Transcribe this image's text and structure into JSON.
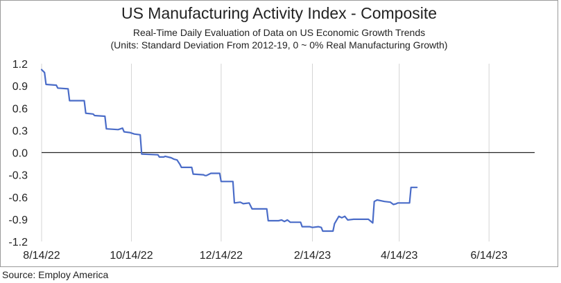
{
  "chart_data": {
    "type": "line",
    "title": "US Manufacturing Activity Index - Composite",
    "subtitle": "Real-Time Daily Evaluation of Data on US Economic Growth Trends",
    "subtitle2": "(Units: Standard Deviation From 2012-19, 0 ~ 0% Real Manufacturing Growth)",
    "xlabel": "",
    "ylabel": "",
    "ylim": [
      -1.2,
      1.2
    ],
    "yticks": [
      1.2,
      0.9,
      0.6,
      0.3,
      0.0,
      -0.3,
      -0.6,
      -0.9,
      -1.2
    ],
    "ytick_labels": [
      "1.2",
      "0.9",
      "0.6",
      "0.3",
      "0.0",
      "-0.3",
      "-0.6",
      "-0.9",
      "-1.2"
    ],
    "xlim": [
      "2022-08-14",
      "2023-07-15"
    ],
    "xticks": [
      "2022-08-14",
      "2022-10-14",
      "2022-12-14",
      "2023-02-14",
      "2023-04-14",
      "2023-06-14"
    ],
    "xtick_labels": [
      "8/14/22",
      "10/14/22",
      "12/14/22",
      "2/14/23",
      "4/14/23",
      "6/14/23"
    ],
    "grid": "vertical",
    "line_color": "#4a6cc8",
    "series": [
      {
        "points": [
          [
            "2022-08-14",
            1.12
          ],
          [
            "2022-08-16",
            1.08
          ],
          [
            "2022-08-17",
            0.92
          ],
          [
            "2022-08-24",
            0.91
          ],
          [
            "2022-08-25",
            0.87
          ],
          [
            "2022-09-01",
            0.86
          ],
          [
            "2022-09-02",
            0.7
          ],
          [
            "2022-09-12",
            0.7
          ],
          [
            "2022-09-13",
            0.53
          ],
          [
            "2022-09-18",
            0.52
          ],
          [
            "2022-09-19",
            0.5
          ],
          [
            "2022-09-26",
            0.49
          ],
          [
            "2022-09-27",
            0.32
          ],
          [
            "2022-10-05",
            0.31
          ],
          [
            "2022-10-08",
            0.33
          ],
          [
            "2022-10-09",
            0.28
          ],
          [
            "2022-10-13",
            0.27
          ],
          [
            "2022-10-16",
            0.25
          ],
          [
            "2022-10-20",
            0.24
          ],
          [
            "2022-10-21",
            -0.02
          ],
          [
            "2022-11-01",
            -0.03
          ],
          [
            "2022-11-02",
            -0.06
          ],
          [
            "2022-11-05",
            -0.06
          ],
          [
            "2022-11-06",
            -0.05
          ],
          [
            "2022-11-10",
            -0.07
          ],
          [
            "2022-11-12",
            -0.09
          ],
          [
            "2022-11-14",
            -0.1
          ],
          [
            "2022-11-16",
            -0.16
          ],
          [
            "2022-11-17",
            -0.2
          ],
          [
            "2022-11-24",
            -0.2
          ],
          [
            "2022-11-25",
            -0.29
          ],
          [
            "2022-12-02",
            -0.3
          ],
          [
            "2022-12-03",
            -0.31
          ],
          [
            "2022-12-04",
            -0.31
          ],
          [
            "2022-12-07",
            -0.28
          ],
          [
            "2022-12-13",
            -0.28
          ],
          [
            "2022-12-14",
            -0.39
          ],
          [
            "2022-12-22",
            -0.39
          ],
          [
            "2022-12-23",
            -0.68
          ],
          [
            "2022-12-27",
            -0.67
          ],
          [
            "2022-12-29",
            -0.69
          ],
          [
            "2023-01-02",
            -0.68
          ],
          [
            "2023-01-04",
            -0.76
          ],
          [
            "2023-01-14",
            -0.76
          ],
          [
            "2023-01-15",
            -0.92
          ],
          [
            "2023-01-22",
            -0.92
          ],
          [
            "2023-01-24",
            -0.91
          ],
          [
            "2023-01-26",
            -0.93
          ],
          [
            "2023-01-28",
            -0.91
          ],
          [
            "2023-01-30",
            -0.94
          ],
          [
            "2023-02-06",
            -0.94
          ],
          [
            "2023-02-07",
            -1.0
          ],
          [
            "2023-02-12",
            -1.0
          ],
          [
            "2023-02-14",
            -1.01
          ],
          [
            "2023-02-18",
            -1.0
          ],
          [
            "2023-02-20",
            -1.01
          ],
          [
            "2023-02-21",
            -1.06
          ],
          [
            "2023-02-28",
            -1.06
          ],
          [
            "2023-03-01",
            -0.96
          ],
          [
            "2023-03-04",
            -0.86
          ],
          [
            "2023-03-06",
            -0.88
          ],
          [
            "2023-03-08",
            -0.86
          ],
          [
            "2023-03-10",
            -0.91
          ],
          [
            "2023-03-14",
            -0.9
          ],
          [
            "2023-03-24",
            -0.9
          ],
          [
            "2023-03-27",
            -0.95
          ],
          [
            "2023-03-28",
            -0.66
          ],
          [
            "2023-03-30",
            -0.64
          ],
          [
            "2023-04-04",
            -0.66
          ],
          [
            "2023-04-08",
            -0.67
          ],
          [
            "2023-04-10",
            -0.7
          ],
          [
            "2023-04-12",
            -0.69
          ],
          [
            "2023-04-13",
            -0.68
          ],
          [
            "2023-04-21",
            -0.68
          ],
          [
            "2023-04-22",
            -0.47
          ],
          [
            "2023-04-26",
            -0.47
          ]
        ]
      }
    ]
  },
  "footer": {
    "source": "Source: Employ America"
  }
}
